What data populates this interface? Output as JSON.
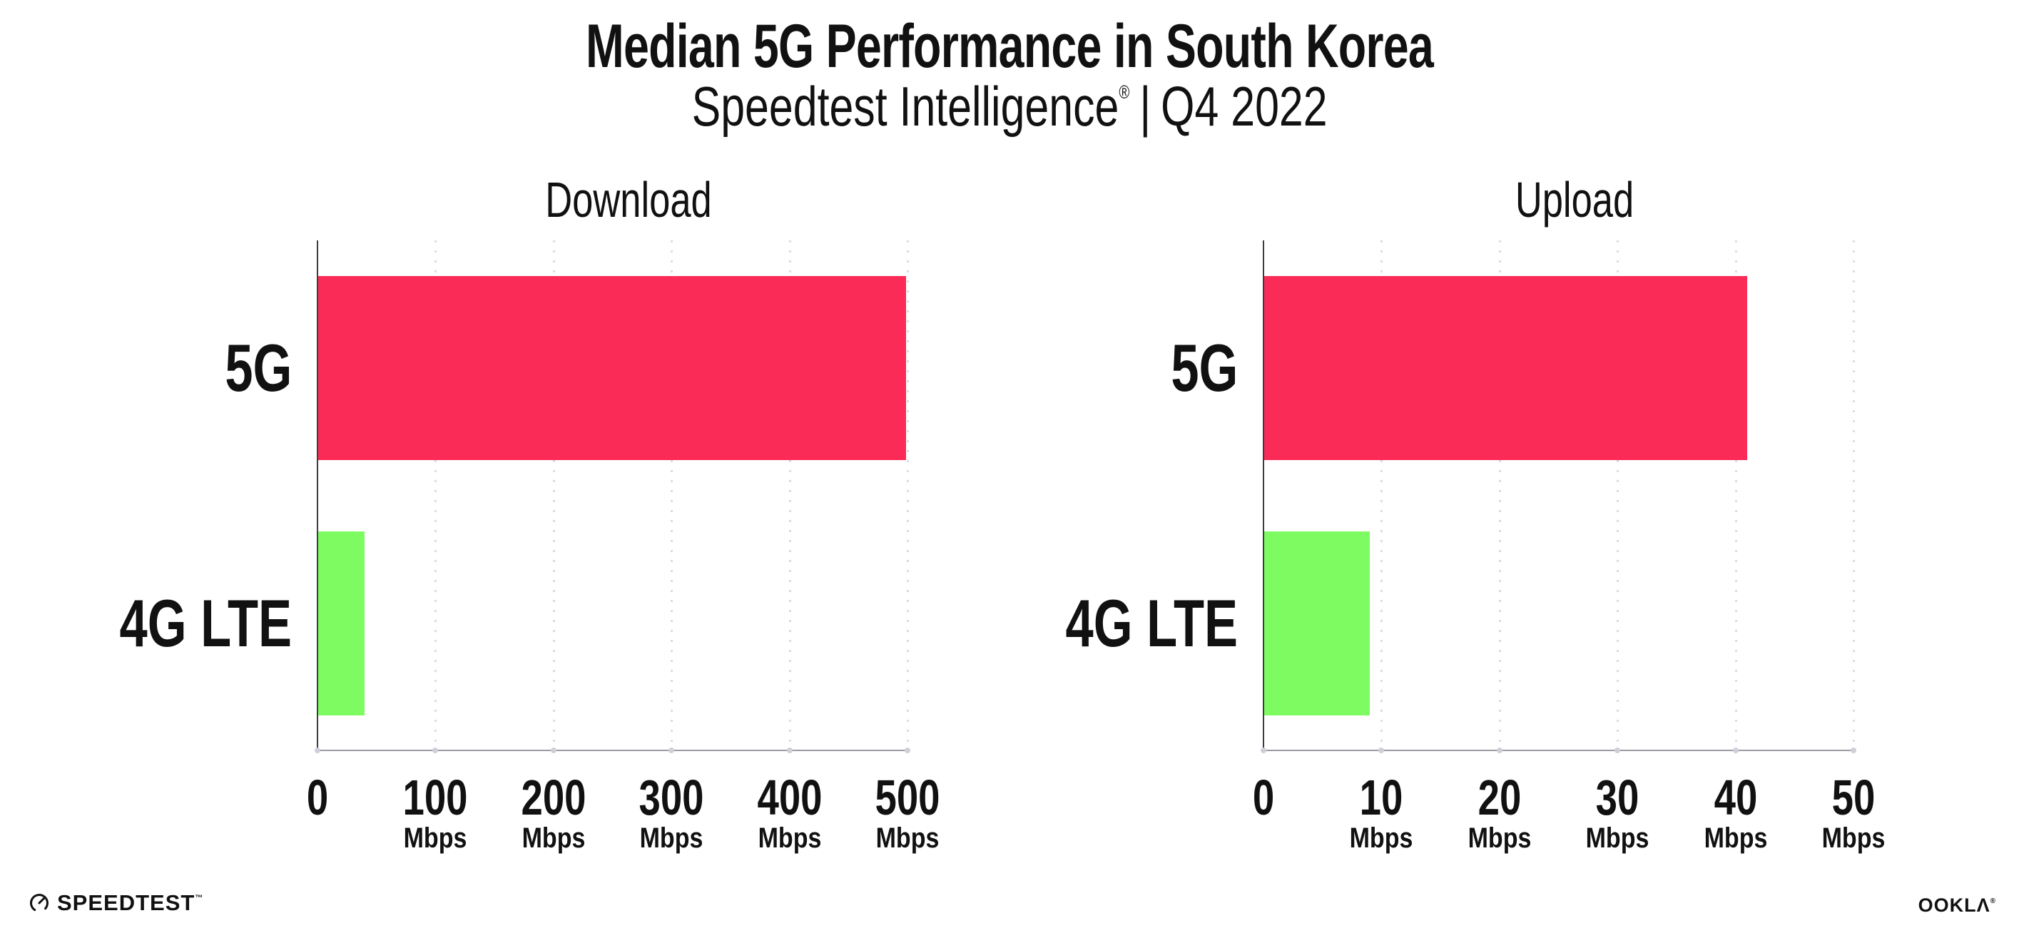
{
  "page": {
    "background": "#ffffff"
  },
  "header": {
    "title": "Median 5G Performance in South Korea",
    "subtitle_brand": "Speedtest Intelligence",
    "subtitle_registered": "®",
    "subtitle_separator": "|",
    "subtitle_period": "Q4 2022"
  },
  "chart_data": [
    {
      "type": "bar",
      "orientation": "horizontal",
      "title": "Download",
      "categories": [
        "5G",
        "4G LTE"
      ],
      "values": [
        499,
        40
      ],
      "unit": "Mbps",
      "xlim": [
        0,
        500
      ],
      "xticks": [
        0,
        100,
        200,
        300,
        400,
        500
      ],
      "bar_colors": [
        "#fb2b57",
        "#7efb61"
      ],
      "grid": "vertical-dotted",
      "legend": "none"
    },
    {
      "type": "bar",
      "orientation": "horizontal",
      "title": "Upload",
      "categories": [
        "5G",
        "4G LTE"
      ],
      "values": [
        41,
        9
      ],
      "unit": "Mbps",
      "xlim": [
        0,
        50
      ],
      "xticks": [
        0,
        10,
        20,
        30,
        40,
        50
      ],
      "bar_colors": [
        "#fb2b57",
        "#7efb61"
      ],
      "grid": "vertical-dotted",
      "legend": "none"
    }
  ],
  "footer": {
    "left_logo_text": "SPEEDTEST",
    "left_logo_tm": "™",
    "right_logo_text": "OOKLΛ",
    "right_logo_registered": "®"
  },
  "colors": {
    "bar_5g": "#fb2b57",
    "bar_4g_lte": "#7efb61",
    "gridline": "#dcdce8",
    "y_axis": "#3c3c44",
    "x_axis": "#9b9ba3",
    "tick_dot": "#cfcfda",
    "text": "#111111"
  }
}
